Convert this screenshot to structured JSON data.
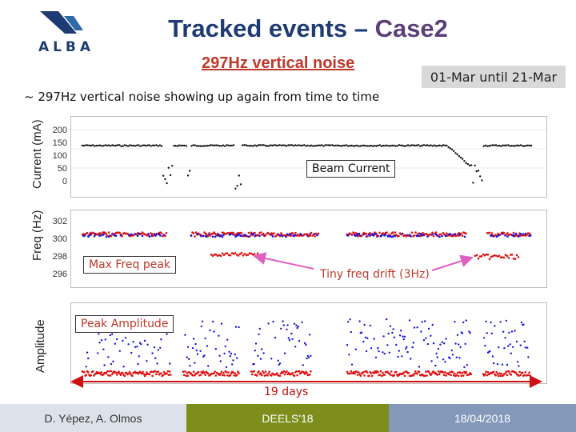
{
  "header": {
    "logo_text": "ALBA",
    "title_main": "Tracked events – ",
    "title_accent": "Case2",
    "subtitle": "297Hz vertical noise",
    "date_range": "01-Mar until 21-Mar",
    "intro": "~ 297Hz vertical noise showing up again from time to time"
  },
  "axis_labels": {
    "current": "Current (mA)",
    "freq": "Freq (Hz)",
    "amplitude": "Amplitude"
  },
  "panels": {
    "current": {
      "yticks": [
        "200",
        "150",
        "100",
        "50",
        "0"
      ]
    },
    "freq": {
      "yticks": [
        "302",
        "300",
        "298",
        "296"
      ]
    }
  },
  "callouts": {
    "beam_current": "Beam Current",
    "max_freq_peak": "Max Freq peak",
    "tiny_freq_drift": "Tiny freq drift (3Hz)",
    "peak_amplitude": "Peak Amplitude",
    "span": "19 days"
  },
  "footer": {
    "authors": "D. Yépez, A. Olmos",
    "event": "DEELS'18",
    "date": "18/04/2018"
  },
  "colors": {
    "title": "#1f3b73",
    "accent": "#5a3f7a",
    "subtitle": "#c0392b",
    "series_h": "#e01010",
    "series_v": "#1515e0",
    "arrow": "#e060c0",
    "span_arrow": "#d01010",
    "footer_a": "#dde2ea",
    "footer_b": "#7d8e1d",
    "footer_c": "#8498ba"
  }
}
